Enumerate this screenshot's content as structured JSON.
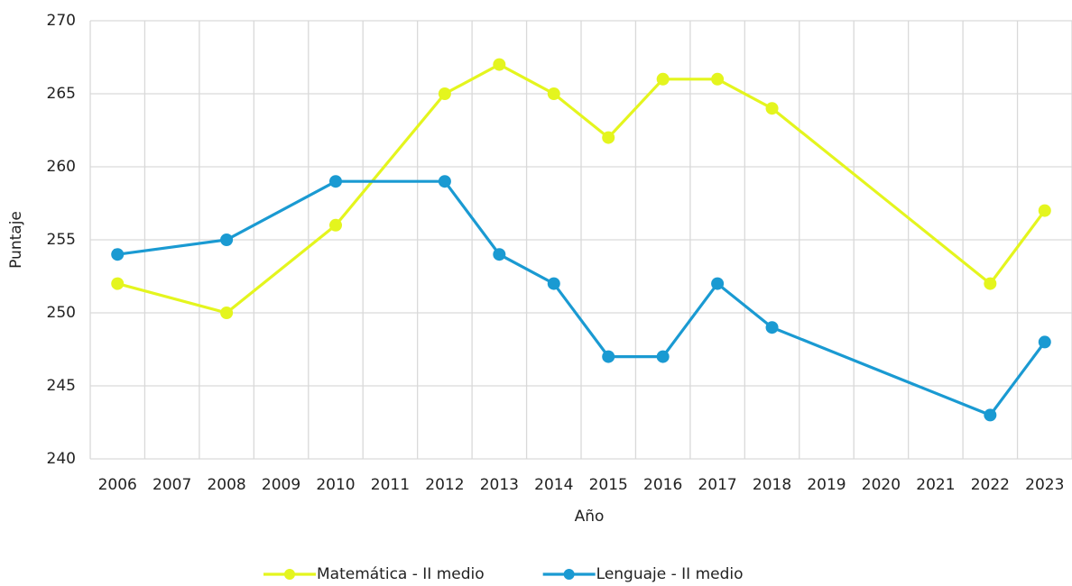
{
  "chart_data": {
    "type": "line",
    "x": [
      2006,
      2008,
      2010,
      2012,
      2013,
      2014,
      2015,
      2016,
      2017,
      2018,
      2022,
      2023
    ],
    "series": [
      {
        "name": "Matemática - II medio",
        "color": "#e4f51e",
        "values": [
          252,
          250,
          256,
          265,
          267,
          265,
          262,
          266,
          266,
          264,
          252,
          257
        ]
      },
      {
        "name": "Lenguaje - II medio",
        "color": "#1a9ad2",
        "values": [
          254,
          255,
          259,
          259,
          254,
          252,
          247,
          247,
          252,
          249,
          243,
          248
        ]
      }
    ],
    "xlabel": "Año",
    "ylabel": "Puntaje",
    "xlim": [
      2005.5,
      2023.5
    ],
    "xticks": [
      2006,
      2007,
      2008,
      2009,
      2010,
      2011,
      2012,
      2013,
      2014,
      2015,
      2016,
      2017,
      2018,
      2019,
      2020,
      2021,
      2022,
      2023
    ],
    "ylim": [
      240,
      270
    ],
    "yticks": [
      240,
      245,
      250,
      255,
      260,
      265,
      270
    ],
    "grid": true,
    "legend": "bottom"
  }
}
